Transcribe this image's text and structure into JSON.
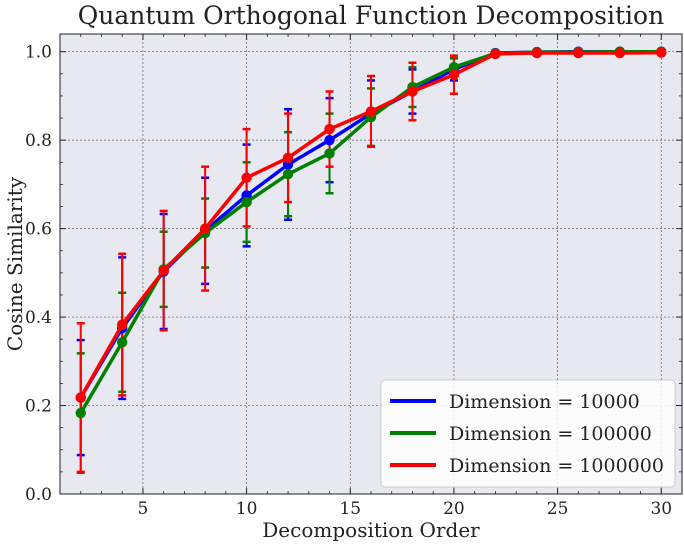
{
  "chart_data": {
    "type": "line",
    "title": "Quantum Orthogonal Function Decomposition",
    "xlabel": "Decomposition Order",
    "ylabel": "Cosine Similarity",
    "xlim": [
      1,
      31
    ],
    "ylim": [
      0,
      1.04
    ],
    "xticks": [
      5,
      10,
      15,
      20,
      25,
      30
    ],
    "xtick_labels": [
      "5",
      "10",
      "15",
      "20",
      "25",
      "30"
    ],
    "yticks": [
      0.0,
      0.2,
      0.4,
      0.6,
      0.8,
      1.0
    ],
    "ytick_labels": [
      "0.0",
      "0.2",
      "0.4",
      "0.6",
      "0.8",
      "1.0"
    ],
    "grid": true,
    "legend_position": "bottom-right",
    "x": [
      2,
      4,
      6,
      8,
      10,
      12,
      14,
      16,
      18,
      20,
      22,
      24,
      26,
      28,
      30
    ],
    "series": [
      {
        "name": "Dimension = 10000",
        "color": "#0000ff",
        "values": [
          0.218,
          0.375,
          0.503,
          0.595,
          0.675,
          0.745,
          0.8,
          0.86,
          0.91,
          0.96,
          0.997,
          0.999,
          1.0,
          1.0,
          1.0
        ],
        "errors": [
          0.13,
          0.16,
          0.13,
          0.12,
          0.115,
          0.125,
          0.095,
          0.075,
          0.05,
          0.025,
          0.003,
          0.002,
          0.001,
          0.001,
          0.001
        ]
      },
      {
        "name": "Dimension = 100000",
        "color": "#008000",
        "values": [
          0.183,
          0.343,
          0.508,
          0.59,
          0.66,
          0.723,
          0.77,
          0.852,
          0.92,
          0.965,
          0.996,
          0.999,
          0.999,
          1.0,
          1.0
        ],
        "errors": [
          0.135,
          0.112,
          0.085,
          0.078,
          0.09,
          0.095,
          0.09,
          0.065,
          0.045,
          0.02,
          0.003,
          0.002,
          0.001,
          0.001,
          0.001
        ]
      },
      {
        "name": "Dimension = 1000000",
        "color": "#ff0000",
        "values": [
          0.218,
          0.383,
          0.505,
          0.6,
          0.715,
          0.76,
          0.825,
          0.865,
          0.91,
          0.948,
          0.995,
          0.997,
          0.997,
          0.997,
          0.998
        ],
        "errors": [
          0.168,
          0.16,
          0.135,
          0.14,
          0.11,
          0.1,
          0.085,
          0.08,
          0.065,
          0.043,
          0.004,
          0.003,
          0.002,
          0.002,
          0.002
        ]
      }
    ]
  }
}
